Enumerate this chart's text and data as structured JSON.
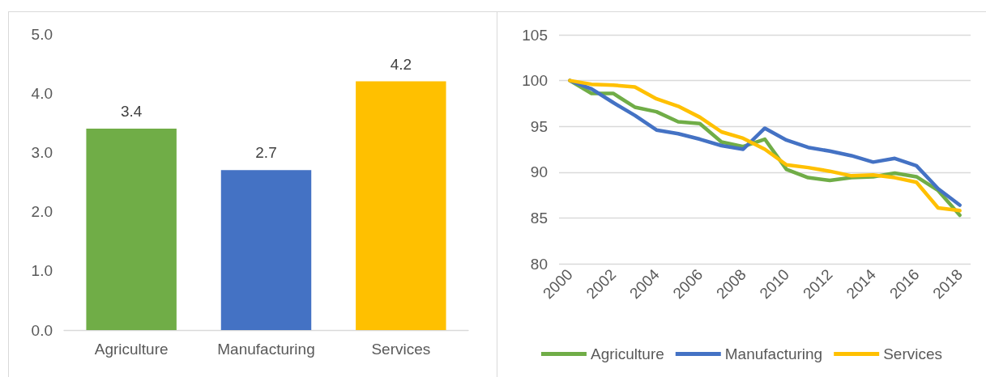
{
  "chart_data": [
    {
      "type": "bar",
      "categories": [
        "Agriculture",
        "Manufacturing",
        "Services"
      ],
      "values": [
        3.4,
        2.7,
        4.2
      ],
      "colors": [
        "#70ad47",
        "#4472c4",
        "#ffc000"
      ],
      "ylim": [
        0,
        5
      ],
      "yticks": [
        {
          "value": 0,
          "label": "0.0"
        },
        {
          "value": 1,
          "label": "1.0"
        },
        {
          "value": 2,
          "label": "2.0"
        },
        {
          "value": 3,
          "label": "3.0"
        },
        {
          "value": 4,
          "label": "4.0"
        },
        {
          "value": 5,
          "label": "5.0"
        }
      ],
      "grid": false,
      "data_labels": true
    },
    {
      "type": "line",
      "categories": [
        "2000",
        null,
        "2002",
        null,
        "2004",
        null,
        "2006",
        null,
        "2008",
        null,
        "2010",
        null,
        "2012",
        null,
        "2014",
        null,
        "2016",
        null,
        "2018"
      ],
      "series": [
        {
          "name": "Agriculture",
          "color": "#70ad47",
          "values": [
            100,
            98.6,
            98.6,
            97.1,
            96.6,
            95.5,
            95.3,
            93.3,
            92.8,
            93.6,
            90.3,
            89.4,
            89.1,
            89.4,
            89.5,
            89.9,
            89.5,
            88.0,
            85.3
          ]
        },
        {
          "name": "Manufacturing",
          "color": "#4472c4",
          "values": [
            100,
            99.1,
            97.6,
            96.2,
            94.6,
            94.2,
            93.6,
            92.9,
            92.5,
            94.8,
            93.5,
            92.7,
            92.3,
            91.8,
            91.1,
            91.5,
            90.7,
            88.2,
            86.4
          ]
        },
        {
          "name": "Services",
          "color": "#ffc000",
          "values": [
            100,
            99.6,
            99.5,
            99.3,
            98.0,
            97.2,
            96.0,
            94.4,
            93.7,
            92.5,
            90.8,
            90.5,
            90.1,
            89.6,
            89.7,
            89.4,
            88.9,
            86.1,
            85.8
          ]
        }
      ],
      "ylim": [
        80,
        105
      ],
      "yticks": [
        80,
        85,
        90,
        95,
        100,
        105
      ],
      "grid": "y",
      "legend": "bottom",
      "line_style": "solid"
    }
  ]
}
